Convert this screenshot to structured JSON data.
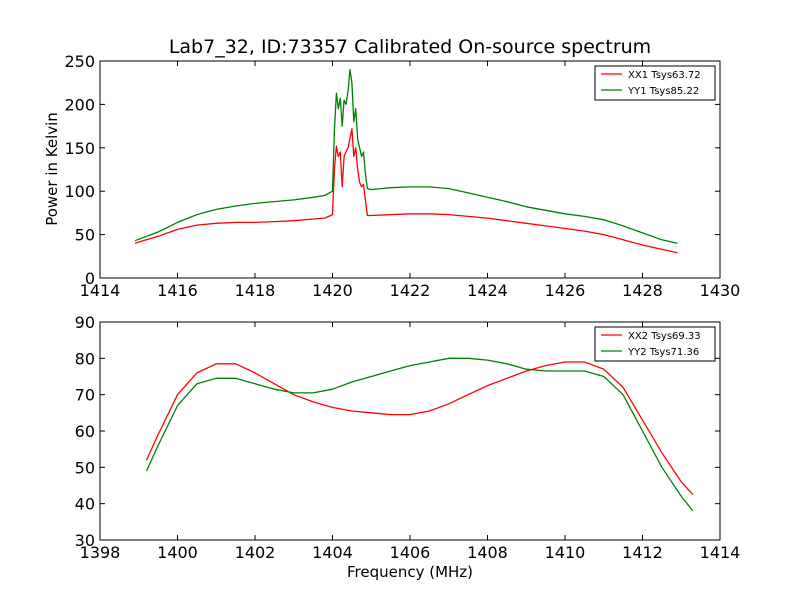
{
  "title": "Lab7_32, ID:73357 Calibrated On-source spectrum",
  "chart_data": [
    {
      "type": "line",
      "title": "Lab7_32, ID:73357 Calibrated On-source spectrum",
      "xlabel": "",
      "ylabel": "Power in Kelvin",
      "xlim": [
        1414,
        1430
      ],
      "ylim": [
        0,
        250
      ],
      "xticks": [
        1414,
        1416,
        1418,
        1420,
        1422,
        1424,
        1426,
        1428,
        1430
      ],
      "yticks": [
        0,
        50,
        100,
        150,
        200,
        250
      ],
      "legend_position": "top-right",
      "series": [
        {
          "name": "XX1 Tsys63.72",
          "color": "#ff0000",
          "x": [
            1414.9,
            1415.5,
            1416.0,
            1416.5,
            1417.0,
            1417.5,
            1418.0,
            1418.5,
            1419.0,
            1419.5,
            1419.8,
            1420.0,
            1420.05,
            1420.1,
            1420.15,
            1420.2,
            1420.25,
            1420.3,
            1420.35,
            1420.4,
            1420.45,
            1420.5,
            1420.55,
            1420.6,
            1420.65,
            1420.7,
            1420.75,
            1420.8,
            1420.85,
            1420.9,
            1421.0,
            1421.5,
            1422.0,
            1422.5,
            1423.0,
            1423.5,
            1424.0,
            1424.5,
            1425.0,
            1425.5,
            1426.0,
            1426.5,
            1427.0,
            1427.5,
            1428.0,
            1428.5,
            1428.9
          ],
          "y": [
            40,
            48,
            56,
            61,
            63,
            64,
            64,
            65,
            66,
            68,
            69,
            73,
            125,
            152,
            140,
            145,
            105,
            140,
            146,
            150,
            160,
            172,
            140,
            150,
            125,
            110,
            105,
            108,
            90,
            72,
            72,
            73,
            74,
            74,
            73,
            71,
            69,
            66,
            63,
            60,
            57,
            54,
            50,
            44,
            38,
            33,
            29
          ]
        },
        {
          "name": "YY1 Tsys85.22",
          "color": "#008000",
          "x": [
            1414.9,
            1415.5,
            1416.0,
            1416.5,
            1417.0,
            1417.5,
            1418.0,
            1418.5,
            1419.0,
            1419.5,
            1419.8,
            1420.0,
            1420.05,
            1420.1,
            1420.15,
            1420.2,
            1420.25,
            1420.3,
            1420.35,
            1420.4,
            1420.45,
            1420.5,
            1420.55,
            1420.6,
            1420.65,
            1420.7,
            1420.75,
            1420.8,
            1420.85,
            1420.9,
            1421.0,
            1421.5,
            1422.0,
            1422.5,
            1423.0,
            1423.5,
            1424.0,
            1424.5,
            1425.0,
            1425.5,
            1426.0,
            1426.5,
            1427.0,
            1427.5,
            1428.0,
            1428.5,
            1428.9
          ],
          "y": [
            43,
            53,
            64,
            73,
            79,
            83,
            86,
            88,
            90,
            93,
            95,
            100,
            170,
            213,
            195,
            207,
            175,
            205,
            200,
            215,
            240,
            225,
            180,
            195,
            160,
            150,
            140,
            145,
            120,
            103,
            102,
            104,
            105,
            105,
            103,
            98,
            93,
            88,
            82,
            78,
            74,
            71,
            67,
            60,
            52,
            44,
            40
          ]
        }
      ]
    },
    {
      "type": "line",
      "title": "",
      "xlabel": "Frequency (MHz)",
      "ylabel": "",
      "xlim": [
        1398,
        1414
      ],
      "ylim": [
        30,
        90
      ],
      "xticks": [
        1398,
        1400,
        1402,
        1404,
        1406,
        1408,
        1410,
        1412,
        1414
      ],
      "yticks": [
        30,
        40,
        50,
        60,
        70,
        80,
        90
      ],
      "legend_position": "top-right",
      "series": [
        {
          "name": "XX2 Tsys69.33",
          "color": "#ff0000",
          "x": [
            1399.2,
            1399.5,
            1400.0,
            1400.5,
            1401.0,
            1401.5,
            1402.0,
            1402.5,
            1403.0,
            1403.5,
            1404.0,
            1404.5,
            1405.0,
            1405.5,
            1406.0,
            1406.5,
            1407.0,
            1407.5,
            1408.0,
            1408.5,
            1409.0,
            1409.5,
            1410.0,
            1410.5,
            1411.0,
            1411.5,
            1412.0,
            1412.5,
            1413.0,
            1413.3
          ],
          "y": [
            52,
            59,
            70,
            76,
            78.5,
            78.5,
            76,
            73,
            70,
            68,
            66.5,
            65.5,
            65,
            64.5,
            64.5,
            65.5,
            67.5,
            70,
            72.5,
            74.5,
            76.5,
            78,
            79,
            79,
            77,
            72,
            63,
            54,
            46,
            42.5
          ]
        },
        {
          "name": "YY2 Tsys71.36",
          "color": "#008000",
          "x": [
            1399.2,
            1399.5,
            1400.0,
            1400.5,
            1401.0,
            1401.5,
            1402.0,
            1402.5,
            1403.0,
            1403.5,
            1404.0,
            1404.5,
            1405.0,
            1405.5,
            1406.0,
            1406.5,
            1407.0,
            1407.5,
            1408.0,
            1408.5,
            1409.0,
            1409.5,
            1410.0,
            1410.5,
            1411.0,
            1411.5,
            1412.0,
            1412.5,
            1413.0,
            1413.3
          ],
          "y": [
            49,
            56,
            67,
            73,
            74.5,
            74.5,
            73,
            71.5,
            70.5,
            70.5,
            71.5,
            73.5,
            75,
            76.5,
            78,
            79,
            80,
            80,
            79.5,
            78.5,
            77,
            76.5,
            76.5,
            76.5,
            75,
            70,
            60,
            50,
            42,
            38
          ]
        }
      ]
    }
  ]
}
